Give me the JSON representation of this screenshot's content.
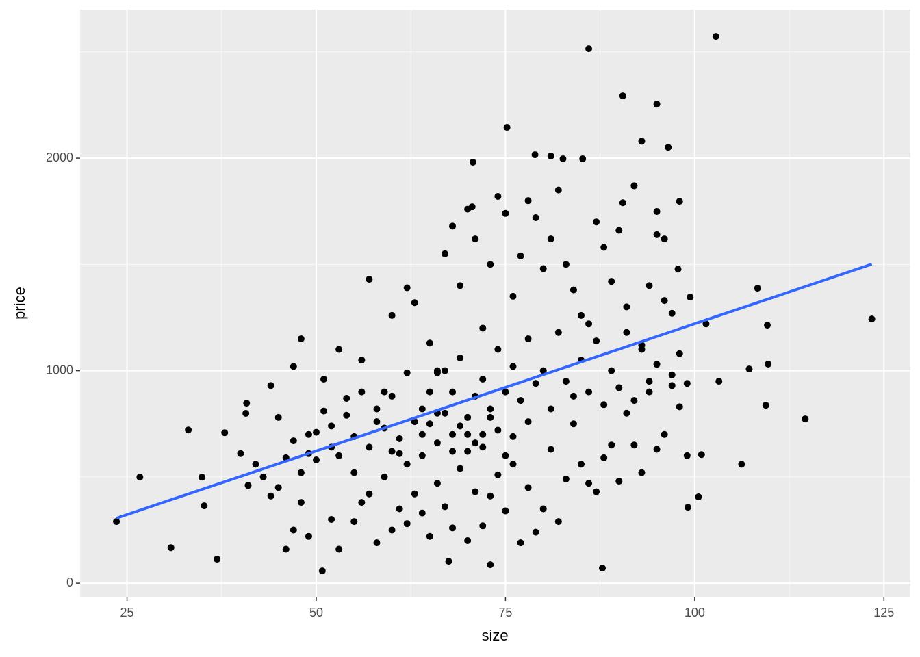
{
  "chart_data": {
    "type": "scatter",
    "x_label": "size",
    "y_label": "price",
    "xlim": [
      18.8,
      128.5
    ],
    "ylim": [
      -64,
      2699
    ],
    "xticks": [
      25,
      50,
      75,
      100,
      125
    ],
    "yticks": [
      0,
      1000,
      2000
    ],
    "x_minor_ticks": [
      37.5,
      62.5,
      87.5,
      112.5
    ],
    "y_minor_ticks": [
      500,
      1500,
      2500
    ],
    "grid": true,
    "series": [
      {
        "type": "scatter",
        "color": "#000000",
        "x": [
          102.8,
          86.0,
          90.5,
          95.0,
          75.2,
          93.0,
          96.5,
          70.7,
          78.9,
          81.0,
          82.6,
          85.2,
          123.4,
          114.6,
          108.3,
          109.6,
          109.7,
          107.2,
          109.4,
          106.2,
          100.5,
          99.1,
          23.6,
          26.7,
          30.8,
          36.9,
          33.1,
          37.9,
          50.8,
          87.8,
          67.5,
          73.0,
          103.2,
          100.9,
          101.5,
          99.4,
          97.8,
          98.0,
          95.0,
          90.5,
          70.6,
          40.8,
          40.7,
          34.9,
          35.2,
          44,
          45,
          47,
          48,
          49,
          50,
          51,
          52,
          53,
          54,
          55,
          56,
          57,
          58,
          59,
          60,
          61,
          62,
          63,
          64,
          65,
          66,
          67,
          68,
          69,
          70,
          71,
          72,
          73,
          74,
          75,
          76,
          77,
          78,
          79,
          80,
          81,
          82,
          83,
          84,
          85,
          86,
          87,
          88,
          89,
          90,
          91,
          92,
          93,
          94,
          95,
          96,
          97,
          98,
          99,
          45,
          46,
          47,
          48,
          49,
          52,
          53,
          55,
          56,
          57,
          58,
          59,
          60,
          61,
          62,
          63,
          64,
          65,
          66,
          67,
          68,
          69,
          70,
          71,
          72,
          73,
          74,
          75,
          76,
          77,
          78,
          79,
          80,
          81,
          82,
          83,
          84,
          85,
          86,
          87,
          88,
          89,
          90,
          91,
          92,
          93,
          94,
          95,
          96,
          97,
          98,
          99,
          40,
          41,
          42,
          43,
          44,
          46,
          47,
          48,
          49,
          50,
          51,
          52,
          53,
          54,
          55,
          56,
          57,
          58,
          59,
          60,
          61,
          62,
          63,
          64,
          65,
          66,
          67,
          68,
          69,
          70,
          71,
          72,
          73,
          74,
          75,
          76,
          77,
          78,
          79,
          80,
          81,
          82,
          83,
          84,
          85,
          86,
          87,
          88,
          89,
          90,
          91,
          92,
          93,
          94,
          95,
          96,
          97,
          60,
          62,
          64,
          66,
          68,
          70,
          72,
          74,
          76,
          78,
          65,
          67,
          69,
          71,
          73,
          75,
          70,
          72,
          68,
          66
        ],
        "values": [
          2573,
          2515,
          2293,
          2254,
          2145,
          2080,
          2051,
          1981,
          2016,
          2010,
          1997,
          1997,
          1243,
          773,
          1388,
          1214,
          1031,
          1008,
          837,
          560,
          406,
          357,
          290,
          499,
          167,
          113,
          721,
          708,
          58,
          71,
          103,
          87,
          950,
          605,
          1220,
          1346,
          1478,
          1797,
          1749,
          1790,
          1771,
          847,
          799,
          499,
          364,
          930,
          780,
          1020,
          1150,
          700,
          580,
          960,
          640,
          1100,
          870,
          520,
          1050,
          1430,
          760,
          900,
          1260,
          680,
          1390,
          1320,
          820,
          1130,
          990,
          1550,
          1680,
          1400,
          1760,
          1620,
          1200,
          1500,
          1820,
          1740,
          1350,
          1540,
          1800,
          1720,
          1480,
          1620,
          1850,
          1500,
          1380,
          1260,
          1220,
          1700,
          1580,
          1420,
          1660,
          1300,
          1870,
          1100,
          1400,
          1640,
          1620,
          1270,
          1080,
          940,
          450,
          160,
          250,
          380,
          220,
          300,
          160,
          290,
          380,
          420,
          190,
          500,
          250,
          350,
          280,
          420,
          330,
          220,
          470,
          360,
          260,
          540,
          200,
          430,
          270,
          410,
          510,
          340,
          560,
          190,
          450,
          240,
          350,
          630,
          290,
          490,
          750,
          560,
          470,
          430,
          590,
          650,
          480,
          800,
          650,
          520,
          900,
          630,
          700,
          930,
          830,
          600,
          610,
          460,
          560,
          500,
          410,
          590,
          670,
          520,
          610,
          710,
          810,
          740,
          600,
          790,
          690,
          900,
          640,
          820,
          730,
          880,
          610,
          990,
          760,
          700,
          900,
          800,
          1000,
          700,
          1060,
          780,
          880,
          960,
          820,
          1100,
          900,
          1020,
          860,
          1150,
          940,
          1000,
          820,
          1180,
          950,
          880,
          1050,
          900,
          1140,
          840,
          1000,
          920,
          1180,
          860,
          1120,
          950,
          1030,
          1330,
          980,
          620,
          560,
          600,
          660,
          620,
          700,
          640,
          720,
          690,
          760,
          750,
          800,
          740,
          660,
          780,
          600,
          620,
          700,
          900,
          1000
        ]
      },
      {
        "type": "line",
        "color": "#3366ff",
        "x": [
          23.6,
          123.4
        ],
        "values": [
          306,
          1501
        ]
      }
    ]
  }
}
